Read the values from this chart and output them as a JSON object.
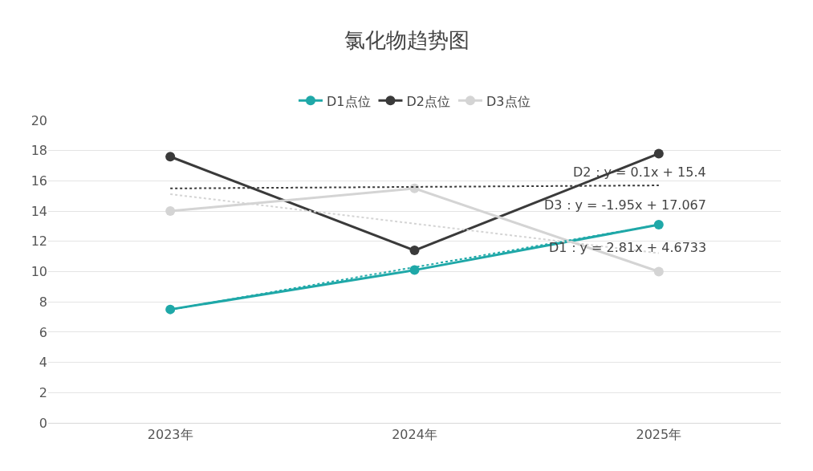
{
  "chart_data": {
    "type": "line",
    "title": "氯化物趋势图",
    "categories": [
      "2023年",
      "2024年",
      "2025年"
    ],
    "series": [
      {
        "name": "D1点位",
        "color": "#1fa8a8",
        "values": [
          7.5,
          10.1,
          13.1
        ],
        "marker": "circle"
      },
      {
        "name": "D2点位",
        "color": "#3a3a3a",
        "values": [
          17.6,
          11.4,
          17.8
        ],
        "marker": "circle"
      },
      {
        "name": "D3点位",
        "color": "#d4d4d4",
        "values": [
          14.0,
          15.5,
          10.0
        ],
        "marker": "circle"
      },
      {
        "color": "#1fa8a8",
        "values": [
          7.48,
          10.29,
          13.1
        ],
        "marker": "none",
        "line_style": "dotted"
      },
      {
        "color": "#3a3a3a",
        "values": [
          15.5,
          15.6,
          15.7
        ],
        "marker": "none",
        "line_style": "dotted"
      },
      {
        "color": "#d4d4d4",
        "values": [
          15.12,
          13.17,
          11.22
        ],
        "marker": "none",
        "line_style": "dotted"
      }
    ],
    "ylim": [
      0,
      20
    ],
    "yticks": [
      0,
      2,
      4,
      6,
      8,
      10,
      12,
      14,
      16,
      18,
      20
    ],
    "grid": "y",
    "legend": "top",
    "annotations": [
      "D2：y = 0.1x + 15.4",
      "D3：y = -1.95x + 17.067",
      "D1：y = 2.81x + 4.6733"
    ]
  }
}
